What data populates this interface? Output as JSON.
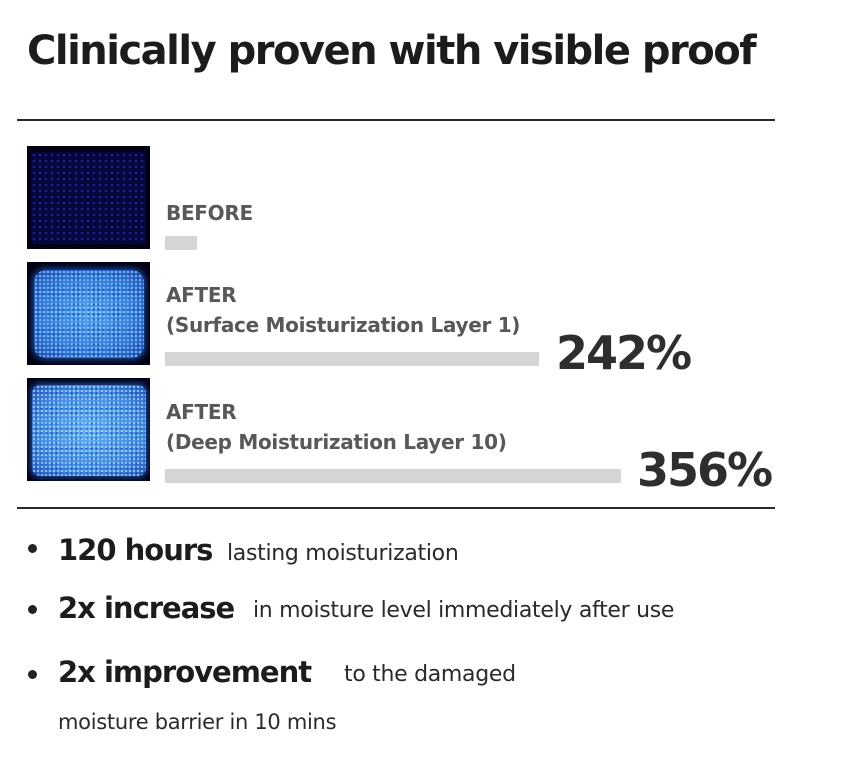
{
  "title": "Clinically proven with visible proof",
  "rows": [
    {
      "line1": "BEFORE",
      "line2": "",
      "percent": ""
    },
    {
      "line1": "AFTER",
      "line2": "(Surface Moisturization Layer 1)",
      "percent": "242%"
    },
    {
      "line1": "AFTER",
      "line2": "(Deep Moisturization Layer 10)",
      "percent": "356%"
    }
  ],
  "bullets": [
    {
      "strong": "120 hours",
      "text": "lasting moisturization",
      "cont": ""
    },
    {
      "strong": "2x increase",
      "text": "in moisture level immediately after use",
      "cont": ""
    },
    {
      "strong": "2x improvement",
      "text": "to the damaged",
      "cont": "moisture barrier in 10 mins"
    }
  ]
}
